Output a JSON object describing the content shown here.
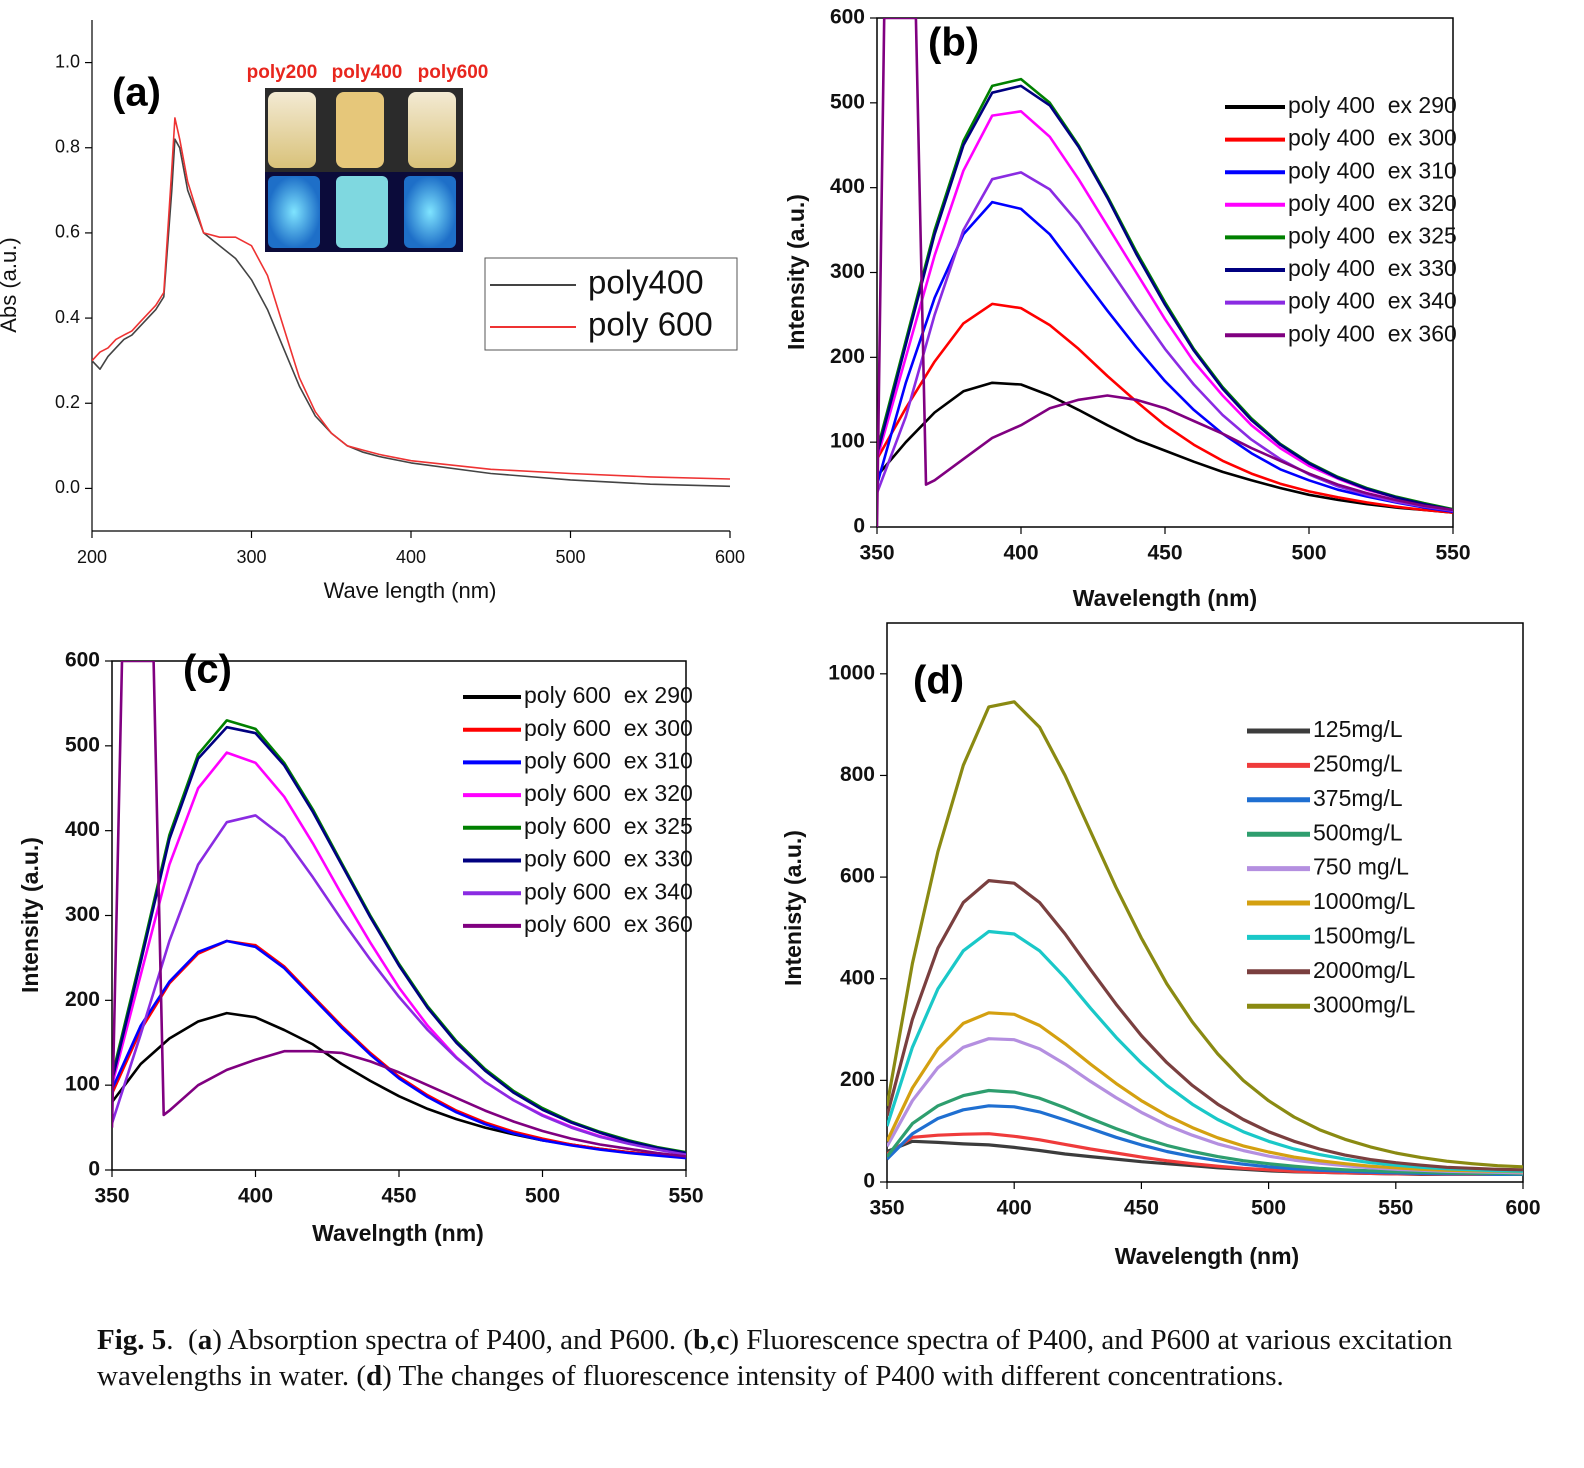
{
  "chart_data": [
    {
      "type": "line",
      "panel_label": "(a)",
      "x_label": "Wave length (nm)",
      "y_label": "Abs (a.u.)",
      "xlim": [
        200,
        600
      ],
      "xticks": [
        200,
        300,
        400,
        500,
        600
      ],
      "ylim": [
        -0.1,
        1.1
      ],
      "yticks": [
        {
          "value": 0,
          "label": "0.0"
        },
        0.2,
        0.4,
        0.6,
        0.8,
        {
          "value": 1,
          "label": "1.0"
        }
      ],
      "inset_labels": [
        "poly200",
        "poly400",
        "poly600"
      ],
      "x": [
        200,
        205,
        210,
        215,
        220,
        225,
        230,
        235,
        240,
        245,
        250,
        252,
        255,
        260,
        270,
        280,
        290,
        300,
        310,
        320,
        330,
        340,
        350,
        360,
        370,
        380,
        400,
        450,
        500,
        550,
        600
      ],
      "series": [
        {
          "name": "poly400",
          "color": "#444444",
          "values": [
            0.3,
            0.28,
            0.31,
            0.33,
            0.35,
            0.36,
            0.38,
            0.4,
            0.42,
            0.45,
            0.7,
            0.82,
            0.8,
            0.7,
            0.6,
            0.57,
            0.54,
            0.49,
            0.42,
            0.33,
            0.24,
            0.17,
            0.13,
            0.1,
            0.085,
            0.075,
            0.06,
            0.035,
            0.02,
            0.01,
            0.005
          ]
        },
        {
          "name": "poly 600",
          "color": "#ee3333",
          "values": [
            0.3,
            0.32,
            0.33,
            0.35,
            0.36,
            0.37,
            0.39,
            0.41,
            0.43,
            0.46,
            0.75,
            0.87,
            0.82,
            0.72,
            0.6,
            0.59,
            0.59,
            0.57,
            0.5,
            0.38,
            0.26,
            0.18,
            0.13,
            0.1,
            0.09,
            0.08,
            0.065,
            0.045,
            0.035,
            0.027,
            0.022
          ]
        }
      ]
    },
    {
      "type": "line",
      "panel_label": "(b)",
      "x_label": "Wavelength (nm)",
      "y_label": "Intensity (a.u.)",
      "xlim": [
        350,
        550
      ],
      "xticks": [
        350,
        400,
        450,
        500,
        550
      ],
      "ylim": [
        0,
        600
      ],
      "yticks": [
        0,
        100,
        200,
        300,
        400,
        500,
        600
      ],
      "x": [
        350,
        360,
        370,
        380,
        390,
        400,
        410,
        420,
        430,
        440,
        450,
        460,
        470,
        480,
        490,
        500,
        510,
        520,
        530,
        540,
        550
      ],
      "series": [
        {
          "name": "poly 400  ex 290",
          "color": "#000000",
          "values": [
            60,
            100,
            135,
            160,
            170,
            168,
            155,
            138,
            120,
            103,
            90,
            77,
            65,
            55,
            46,
            38,
            32,
            27,
            23,
            20,
            17
          ]
        },
        {
          "name": "poly 400  ex 300",
          "color": "#ff0000",
          "values": [
            80,
            140,
            195,
            240,
            263,
            258,
            238,
            210,
            178,
            148,
            120,
            97,
            78,
            63,
            51,
            42,
            35,
            29,
            24,
            20,
            17
          ]
        },
        {
          "name": "poly 400  ex 310",
          "color": "#0000ff",
          "values": [
            50,
            170,
            270,
            345,
            383,
            375,
            345,
            300,
            255,
            212,
            172,
            138,
            110,
            87,
            68,
            55,
            44,
            36,
            29,
            23,
            18
          ]
        },
        {
          "name": "poly 400  ex 320",
          "color": "#ff00ff",
          "values": [
            80,
            200,
            320,
            420,
            485,
            490,
            460,
            410,
            355,
            300,
            245,
            195,
            155,
            120,
            93,
            72,
            57,
            44,
            35,
            27,
            20
          ]
        },
        {
          "name": "poly 400  ex 325",
          "color": "#008000",
          "values": [
            90,
            220,
            350,
            455,
            520,
            528,
            500,
            450,
            390,
            325,
            265,
            210,
            165,
            128,
            98,
            76,
            59,
            46,
            36,
            28,
            21
          ]
        },
        {
          "name": "poly 400  ex 330",
          "color": "#000080",
          "values": [
            85,
            215,
            345,
            450,
            512,
            520,
            497,
            448,
            388,
            322,
            262,
            208,
            163,
            126,
            97,
            75,
            58,
            45,
            35,
            27,
            20
          ]
        },
        {
          "name": "poly 400  ex 340",
          "color": "#8a2be2",
          "values": [
            40,
            130,
            250,
            350,
            410,
            418,
            398,
            358,
            308,
            258,
            210,
            168,
            132,
            103,
            80,
            62,
            48,
            38,
            30,
            24,
            19
          ]
        },
        {
          "name": "poly 400  ex 360",
          "color": "#800080",
          "x": [
            350,
            352.5,
            363.5,
            367,
            370,
            380,
            390,
            400,
            410,
            420,
            430,
            440,
            450,
            460,
            470,
            480,
            490,
            500,
            510,
            520,
            530,
            540,
            550
          ],
          "values": [
            0,
            600,
            600,
            50,
            55,
            80,
            105,
            120,
            140,
            150,
            155,
            150,
            140,
            125,
            110,
            93,
            78,
            63,
            50,
            40,
            32,
            25,
            20
          ]
        }
      ]
    },
    {
      "type": "line",
      "panel_label": "(c)",
      "x_label": "Wavelngth (nm)",
      "y_label": "Intensity (a.u.)",
      "xlim": [
        350,
        550
      ],
      "xticks": [
        350,
        400,
        450,
        500,
        550
      ],
      "ylim": [
        0,
        600
      ],
      "yticks": [
        0,
        100,
        200,
        300,
        400,
        500,
        600
      ],
      "x": [
        350,
        360,
        370,
        380,
        390,
        400,
        410,
        420,
        430,
        440,
        450,
        460,
        470,
        480,
        490,
        500,
        510,
        520,
        530,
        540,
        550
      ],
      "series": [
        {
          "name": "poly 600  ex 290",
          "color": "#000000",
          "values": [
            80,
            125,
            155,
            175,
            185,
            180,
            165,
            148,
            125,
            105,
            87,
            72,
            60,
            50,
            42,
            35,
            30,
            25,
            21,
            18,
            15
          ]
        },
        {
          "name": "poly 600  ex 300",
          "color": "#ff0000",
          "values": [
            90,
            165,
            220,
            255,
            270,
            265,
            240,
            205,
            170,
            138,
            110,
            88,
            70,
            56,
            45,
            37,
            30,
            25,
            21,
            18,
            15
          ]
        },
        {
          "name": "poly 600  ex 310",
          "color": "#0000ff",
          "values": [
            95,
            170,
            222,
            257,
            270,
            263,
            238,
            203,
            168,
            136,
            108,
            86,
            68,
            54,
            43,
            35,
            29,
            24,
            20,
            17,
            14
          ]
        },
        {
          "name": "poly 600  ex 320",
          "color": "#ff00ff",
          "values": [
            100,
            230,
            360,
            450,
            492,
            480,
            440,
            385,
            325,
            268,
            215,
            170,
            133,
            104,
            82,
            65,
            51,
            40,
            32,
            25,
            19
          ]
        },
        {
          "name": "poly 600  ex 325",
          "color": "#008000",
          "values": [
            110,
            250,
            395,
            490,
            530,
            520,
            480,
            425,
            362,
            300,
            243,
            193,
            152,
            119,
            93,
            73,
            57,
            45,
            35,
            27,
            21
          ]
        },
        {
          "name": "poly 600  ex 330",
          "color": "#000080",
          "values": [
            105,
            245,
            390,
            485,
            522,
            515,
            477,
            422,
            360,
            298,
            241,
            191,
            150,
            117,
            91,
            71,
            56,
            44,
            34,
            26,
            20
          ]
        },
        {
          "name": "poly 600  ex 340",
          "color": "#8a2be2",
          "values": [
            55,
            160,
            270,
            360,
            410,
            418,
            392,
            345,
            295,
            248,
            204,
            165,
            132,
            104,
            82,
            64,
            50,
            39,
            31,
            24,
            18
          ]
        },
        {
          "name": "poly 600  ex 360",
          "color": "#800080",
          "x": [
            350,
            353.5,
            364.5,
            368,
            370,
            380,
            390,
            400,
            410,
            420,
            430,
            440,
            450,
            460,
            470,
            480,
            490,
            500,
            510,
            520,
            530,
            540,
            550
          ],
          "values": [
            50,
            600,
            600,
            65,
            70,
            100,
            118,
            130,
            140,
            140,
            138,
            128,
            115,
            100,
            85,
            70,
            57,
            46,
            37,
            30,
            25,
            20,
            16
          ]
        }
      ]
    },
    {
      "type": "line",
      "panel_label": "(d)",
      "x_label": "Wavelength (nm)",
      "y_label": "Intenisty (a.u.)",
      "xlim": [
        350,
        600
      ],
      "xticks": [
        350,
        400,
        450,
        500,
        550,
        600
      ],
      "ylim": [
        0,
        1100
      ],
      "yticks": [
        0,
        200,
        400,
        600,
        800,
        1000
      ],
      "x": [
        350,
        360,
        370,
        380,
        390,
        400,
        410,
        420,
        430,
        440,
        450,
        460,
        470,
        480,
        490,
        500,
        510,
        520,
        530,
        540,
        550,
        560,
        570,
        580,
        590,
        600
      ],
      "series": [
        {
          "name": "125mg/L",
          "color": "#3c3c3c",
          "values": [
            60,
            80,
            78,
            75,
            73,
            68,
            62,
            55,
            50,
            45,
            40,
            36,
            32,
            28,
            25,
            22,
            20,
            19,
            18,
            17,
            16,
            15,
            15,
            15,
            15,
            15
          ]
        },
        {
          "name": "250mg/L",
          "color": "#ef3b3b",
          "values": [
            55,
            88,
            92,
            94,
            95,
            90,
            83,
            74,
            65,
            57,
            49,
            42,
            36,
            31,
            27,
            24,
            21,
            19,
            18,
            17,
            16,
            16,
            15,
            15,
            15,
            15
          ]
        },
        {
          "name": "375mg/L",
          "color": "#1f6fd1",
          "values": [
            45,
            95,
            125,
            142,
            150,
            148,
            138,
            122,
            105,
            88,
            73,
            60,
            50,
            42,
            35,
            30,
            26,
            23,
            21,
            19,
            18,
            17,
            16,
            16,
            15,
            15
          ]
        },
        {
          "name": "500mg/L",
          "color": "#2e9e6e",
          "values": [
            50,
            115,
            150,
            170,
            180,
            177,
            165,
            146,
            125,
            105,
            87,
            72,
            60,
            50,
            42,
            36,
            31,
            27,
            24,
            22,
            20,
            19,
            18,
            17,
            17,
            16
          ]
        },
        {
          "name": "750 mg/L",
          "color": "#b48fe0",
          "values": [
            70,
            160,
            225,
            265,
            282,
            280,
            262,
            232,
            198,
            166,
            137,
            112,
            92,
            75,
            62,
            51,
            43,
            37,
            32,
            28,
            25,
            23,
            21,
            20,
            19,
            18
          ]
        },
        {
          "name": "1000mg/L",
          "color": "#d4a010",
          "values": [
            80,
            185,
            262,
            312,
            333,
            330,
            308,
            272,
            232,
            194,
            160,
            131,
            107,
            87,
            71,
            59,
            49,
            42,
            36,
            31,
            28,
            25,
            23,
            22,
            21,
            20
          ]
        },
        {
          "name": "1500mg/L",
          "color": "#1ac8c8",
          "values": [
            110,
            265,
            380,
            455,
            493,
            488,
            455,
            402,
            342,
            285,
            234,
            190,
            153,
            123,
            99,
            80,
            65,
            54,
            45,
            38,
            33,
            29,
            26,
            24,
            22,
            21
          ]
        },
        {
          "name": "2000mg/L",
          "color": "#7a3f3f",
          "values": [
            130,
            320,
            460,
            550,
            593,
            588,
            550,
            488,
            418,
            350,
            288,
            235,
            190,
            153,
            123,
            99,
            80,
            65,
            53,
            44,
            38,
            33,
            29,
            27,
            25,
            24
          ]
        },
        {
          "name": "3000mg/L",
          "color": "#8a8a12",
          "values": [
            150,
            430,
            650,
            820,
            935,
            945,
            895,
            800,
            690,
            580,
            480,
            390,
            315,
            252,
            200,
            160,
            128,
            103,
            84,
            69,
            57,
            48,
            41,
            36,
            32,
            30
          ]
        }
      ]
    }
  ],
  "caption": [
    {
      "text": "Fig. 5",
      "bold": true
    },
    {
      "text": ".  (",
      "bold": false
    },
    {
      "text": "a",
      "bold": true
    },
    {
      "text": ") Absorption spectra of P400, and P600. (",
      "bold": false
    },
    {
      "text": "b",
      "bold": true
    },
    {
      "text": ",",
      "bold": false
    },
    {
      "text": "c",
      "bold": true
    },
    {
      "text": ") Fluorescence spectra of P400, and P600 at various excitation wavelengths in water. (",
      "bold": false
    },
    {
      "text": "d",
      "bold": true
    },
    {
      "text": ") The changes of fluorescence intensity of P400 with different concentrations.",
      "bold": false
    }
  ]
}
